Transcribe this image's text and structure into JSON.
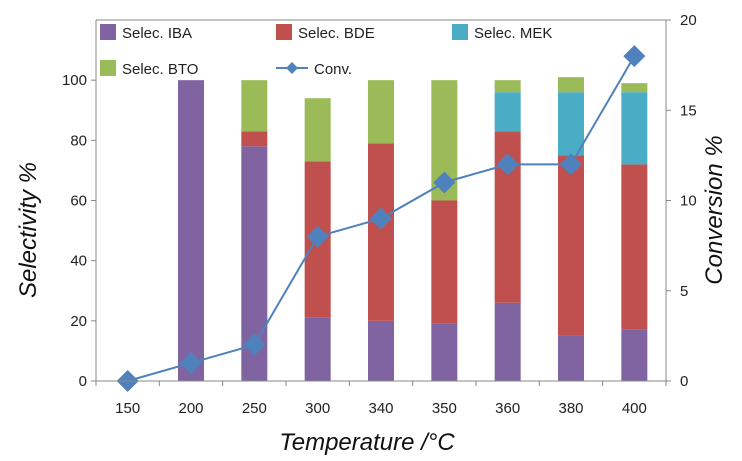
{
  "chart_data": {
    "type": "bar",
    "stacked": true,
    "categories": [
      "150",
      "200",
      "250",
      "300",
      "340",
      "350",
      "360",
      "380",
      "400"
    ],
    "series": [
      {
        "name": "Selec. IBA",
        "kind": "bar",
        "axis": "left",
        "color": "#8064A2",
        "values": [
          0,
          100,
          78,
          21,
          20,
          19,
          26,
          15,
          17
        ]
      },
      {
        "name": "Selec. BDE",
        "kind": "bar",
        "axis": "left",
        "color": "#C0504D",
        "values": [
          0,
          0,
          5,
          52,
          59,
          41,
          57,
          60,
          55
        ]
      },
      {
        "name": "Selec. MEK",
        "kind": "bar",
        "axis": "left",
        "color": "#4BACC6",
        "values": [
          0,
          0,
          0,
          0,
          0,
          0,
          13,
          21,
          24
        ]
      },
      {
        "name": "Selec. BTO",
        "kind": "bar",
        "axis": "left",
        "color": "#9BBB59",
        "values": [
          0,
          0,
          17,
          21,
          21,
          40,
          4,
          5,
          3
        ]
      },
      {
        "name": "Conv.",
        "kind": "line",
        "axis": "right",
        "color": "#4F81BD",
        "marker": "diamond",
        "values": [
          0,
          1,
          2,
          8,
          9,
          11,
          12,
          12,
          18
        ]
      }
    ],
    "xlabel": "Temperature /°C",
    "ylabel": "Selectivity %",
    "y2label": "Conversion %",
    "ylim": [
      0,
      120
    ],
    "y2lim": [
      0,
      20
    ],
    "yticks": [
      0,
      20,
      40,
      60,
      80,
      100
    ],
    "y2ticks": [
      0,
      5,
      10,
      15,
      20
    ],
    "grid": false,
    "legend": "top"
  }
}
